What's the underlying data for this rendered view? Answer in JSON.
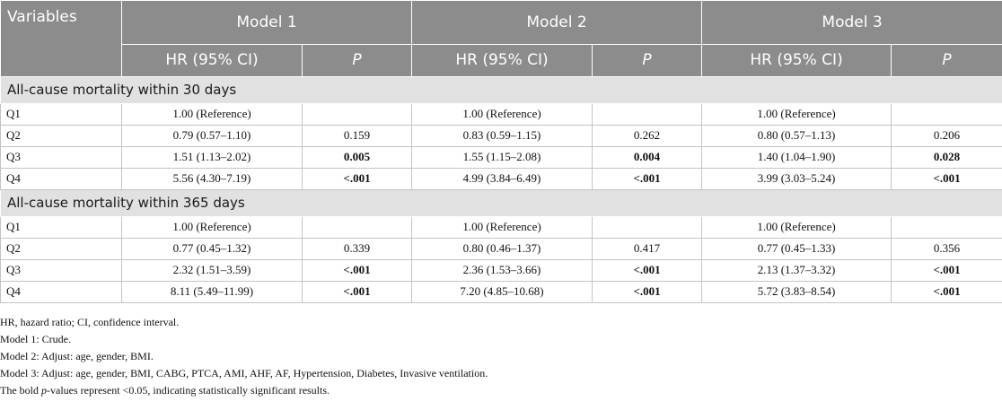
{
  "header": {
    "variables": "Variables",
    "models": [
      "Model 1",
      "Model 2",
      "Model 3"
    ],
    "hr_label": "HR (95% CI)",
    "p_label": "P"
  },
  "sections": [
    {
      "title": "All-cause mortality within 30 days",
      "rows": [
        {
          "q": "Q1",
          "cells": [
            {
              "hr": "1.00 (Reference)",
              "p": "",
              "bold": false
            },
            {
              "hr": "1.00 (Reference)",
              "p": "",
              "bold": false
            },
            {
              "hr": "1.00 (Reference)",
              "p": "",
              "bold": false
            }
          ]
        },
        {
          "q": "Q2",
          "cells": [
            {
              "hr": "0.79 (0.57–1.10)",
              "p": "0.159",
              "bold": false
            },
            {
              "hr": "0.83 (0.59–1.15)",
              "p": "0.262",
              "bold": false
            },
            {
              "hr": "0.80 (0.57–1.13)",
              "p": "0.206",
              "bold": false
            }
          ]
        },
        {
          "q": "Q3",
          "cells": [
            {
              "hr": "1.51 (1.13–2.02)",
              "p": "0.005",
              "bold": true
            },
            {
              "hr": "1.55 (1.15–2.08)",
              "p": "0.004",
              "bold": true
            },
            {
              "hr": "1.40 (1.04–1.90)",
              "p": "0.028",
              "bold": true
            }
          ]
        },
        {
          "q": "Q4",
          "cells": [
            {
              "hr": "5.56 (4.30–7.19)",
              "p": "<.001",
              "bold": true
            },
            {
              "hr": "4.99 (3.84–6.49)",
              "p": "<.001",
              "bold": true
            },
            {
              "hr": "3.99 (3.03–5.24)",
              "p": "<.001",
              "bold": true
            }
          ]
        }
      ]
    },
    {
      "title": "All-cause mortality within 365 days",
      "rows": [
        {
          "q": "Q1",
          "cells": [
            {
              "hr": "1.00 (Reference)",
              "p": "",
              "bold": false
            },
            {
              "hr": "1.00 (Reference)",
              "p": "",
              "bold": false
            },
            {
              "hr": "1.00 (Reference)",
              "p": "",
              "bold": false
            }
          ]
        },
        {
          "q": "Q2",
          "cells": [
            {
              "hr": "0.77 (0.45–1.32)",
              "p": "0.339",
              "bold": false
            },
            {
              "hr": "0.80 (0.46–1.37)",
              "p": "0.417",
              "bold": false
            },
            {
              "hr": "0.77 (0.45–1.33)",
              "p": "0.356",
              "bold": false
            }
          ]
        },
        {
          "q": "Q3",
          "cells": [
            {
              "hr": "2.32 (1.51–3.59)",
              "p": "<.001",
              "bold": true
            },
            {
              "hr": "2.36 (1.53–3.66)",
              "p": "<.001",
              "bold": true
            },
            {
              "hr": "2.13 (1.37–3.32)",
              "p": "<.001",
              "bold": true
            }
          ]
        },
        {
          "q": "Q4",
          "cells": [
            {
              "hr": "8.11 (5.49–11.99)",
              "p": "<.001",
              "bold": true
            },
            {
              "hr": "7.20 (4.85–10.68)",
              "p": "<.001",
              "bold": true
            },
            {
              "hr": "5.72 (3.83–8.54)",
              "p": "<.001",
              "bold": true
            }
          ]
        }
      ]
    }
  ],
  "footnotes": {
    "abbrev": "HR, hazard ratio; CI, confidence interval.",
    "model1": "Model 1: Crude.",
    "model2": "Model 2: Adjust: age, gender, BMI.",
    "model3": "Model 3: Adjust: age, gender, BMI, CABG, PTCA, AMI, AHF, AF, Hypertension, Diabetes, Invasive ventilation.",
    "bold_pre": "The bold ",
    "bold_italic": "p",
    "bold_post": "-values represent <0.05, indicating statistically significant results."
  }
}
